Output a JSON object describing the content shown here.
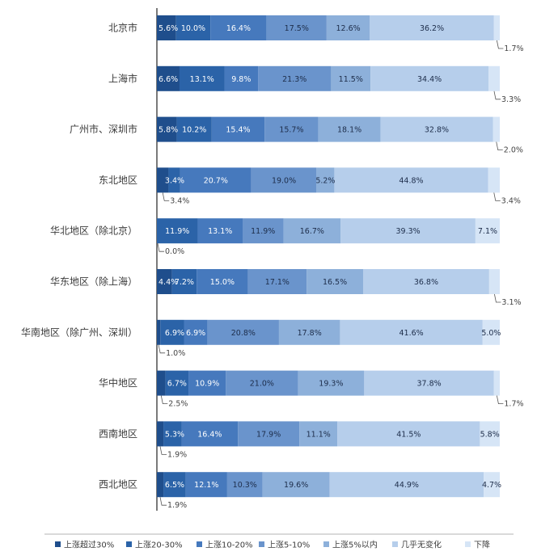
{
  "chart_data": {
    "type": "bar",
    "orientation": "horizontal",
    "stacked": true,
    "normalized": true,
    "xlim": [
      0,
      100
    ],
    "categories": [
      "北京市",
      "上海市",
      "广州市、深圳市",
      "东北地区",
      "华北地区（除北京）",
      "华东地区（除上海）",
      "华南地区（除广州、深圳）",
      "华中地区",
      "西南地区",
      "西北地区"
    ],
    "series": [
      {
        "name": "上涨超过30%",
        "color": "#1f4e8c",
        "values": [
          5.6,
          6.6,
          5.8,
          3.4,
          0.0,
          4.4,
          1.0,
          2.5,
          1.9,
          1.9
        ]
      },
      {
        "name": "上涨20-30%",
        "color": "#2b63a8",
        "values": [
          10.0,
          13.1,
          10.2,
          3.4,
          11.9,
          7.2,
          6.9,
          6.7,
          5.3,
          6.5
        ]
      },
      {
        "name": "上涨10-20%",
        "color": "#4679bd",
        "values": [
          16.4,
          9.8,
          15.4,
          20.7,
          13.1,
          15.0,
          6.9,
          10.9,
          16.4,
          12.1
        ]
      },
      {
        "name": "上涨5-10%",
        "color": "#6a94cc",
        "values": [
          17.5,
          21.3,
          15.7,
          19.0,
          11.9,
          17.1,
          20.8,
          21.0,
          17.9,
          10.3
        ]
      },
      {
        "name": "上涨5%以内",
        "color": "#8db0da",
        "values": [
          12.6,
          11.5,
          18.1,
          5.2,
          16.7,
          16.5,
          17.8,
          19.3,
          11.1,
          19.6
        ]
      },
      {
        "name": "几乎无变化",
        "color": "#b6ceeb",
        "values": [
          36.2,
          34.4,
          32.8,
          44.8,
          39.3,
          36.8,
          41.6,
          37.8,
          41.5,
          44.9
        ]
      },
      {
        "name": "下降",
        "color": "#d6e5f6",
        "values": [
          1.7,
          3.3,
          2.0,
          3.4,
          7.1,
          3.1,
          5.0,
          1.7,
          5.8,
          4.7
        ]
      }
    ],
    "segment_labels": [
      [
        "5.6%",
        "10.0%",
        "16.4%",
        "17.5%",
        "12.6%",
        "36.2%",
        "1.7%"
      ],
      [
        "6.6%",
        "13.1%",
        "9.8%",
        "21.3%",
        "11.5%",
        "34.4%",
        "3.3%"
      ],
      [
        "5.8%",
        "10.2%",
        "15.4%",
        "15.7%",
        "18.1%",
        "32.8%",
        "2.0%"
      ],
      [
        "3.4%",
        "3.4%",
        "20.7%",
        "19.0%",
        "5.2%",
        "44.8%",
        "3.4%"
      ],
      [
        "0.0%",
        "11.9%",
        "13.1%",
        "11.9%",
        "16.7%",
        "39.3%",
        "7.1%"
      ],
      [
        "4.4%",
        "7.2%",
        "15.0%",
        "17.1%",
        "16.5%",
        "36.8%",
        "3.1%"
      ],
      [
        "1.0%",
        "6.9%",
        "6.9%",
        "20.8%",
        "17.8%",
        "41.6%",
        "5.0%"
      ],
      [
        "2.5%",
        "6.7%",
        "10.9%",
        "21.0%",
        "19.3%",
        "37.8%",
        "1.7%"
      ],
      [
        "1.9%",
        "5.3%",
        "16.4%",
        "17.9%",
        "11.1%",
        "41.5%",
        "5.8%"
      ],
      [
        "1.9%",
        "6.5%",
        "12.1%",
        "10.3%",
        "19.6%",
        "44.9%",
        "4.7%"
      ]
    ],
    "title": "",
    "xlabel": "",
    "ylabel": "",
    "legend_position": "bottom"
  }
}
